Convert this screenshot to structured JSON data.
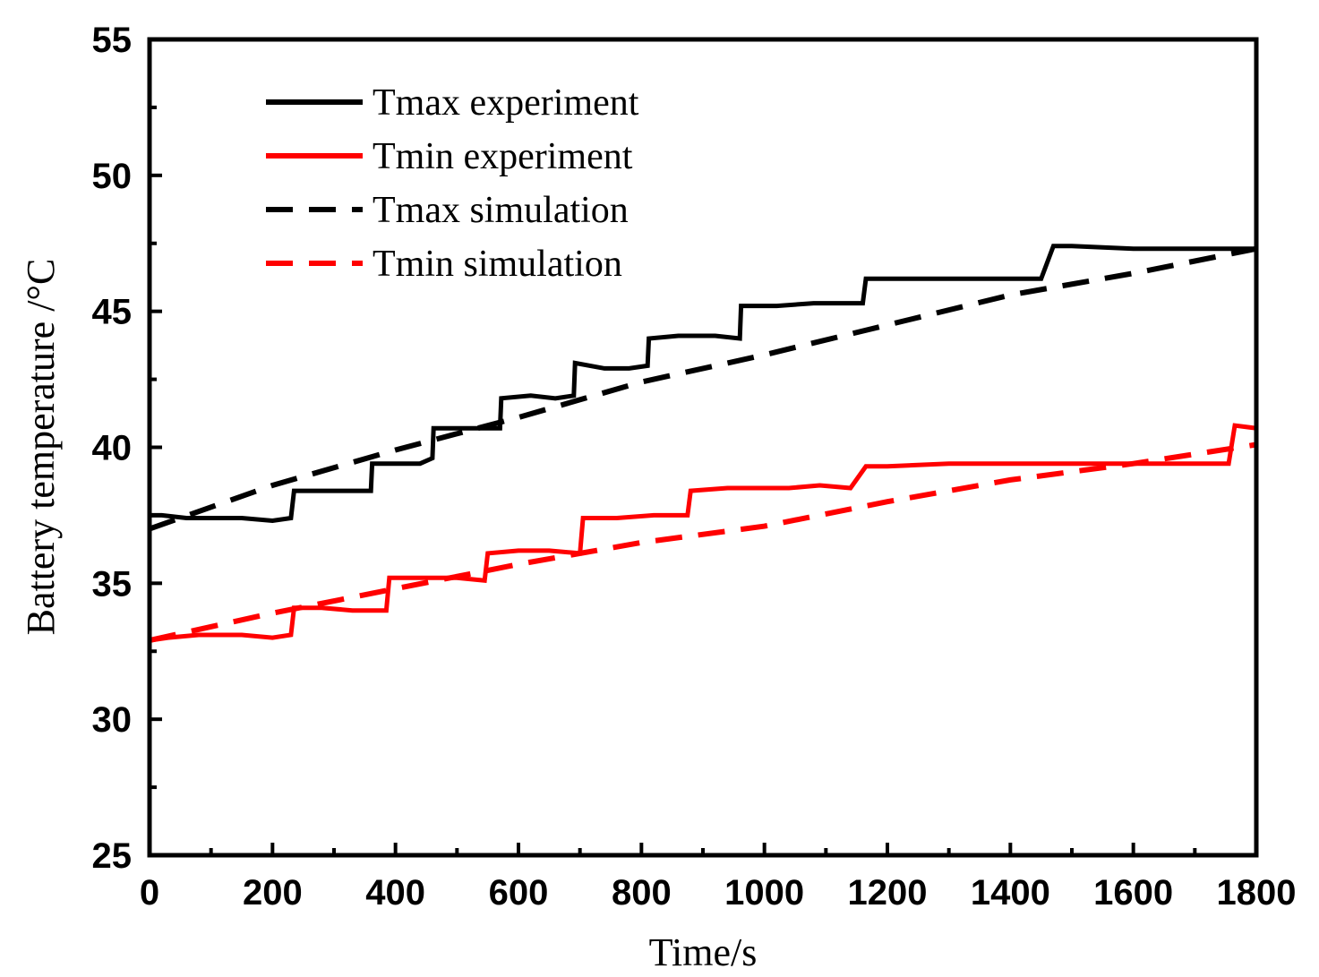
{
  "chart_data": {
    "type": "line",
    "title": "",
    "xlabel": "Time/s",
    "ylabel": "Battery temperature /°C",
    "xlim": [
      0,
      1800
    ],
    "ylim": [
      25,
      55
    ],
    "xticks": [
      0,
      200,
      400,
      600,
      800,
      1000,
      1200,
      1400,
      1600,
      1800
    ],
    "xtick_labels": [
      "0",
      "200",
      "400",
      "600",
      "800",
      "1000",
      "1200",
      "1400",
      "1600",
      "1800"
    ],
    "yticks": [
      25,
      30,
      35,
      40,
      45,
      50,
      55
    ],
    "ytick_labels": [
      "25",
      "30",
      "35",
      "40",
      "45",
      "50",
      "55"
    ],
    "grid": false,
    "legend_position": "top-left",
    "series": [
      {
        "name": "Tmax experiment",
        "color": "#000000",
        "style": "solid",
        "x": [
          0,
          20,
          60,
          150,
          200,
          230,
          235,
          280,
          320,
          360,
          362,
          400,
          440,
          460,
          462,
          500,
          540,
          570,
          572,
          620,
          660,
          690,
          692,
          740,
          780,
          810,
          812,
          860,
          920,
          960,
          962,
          1020,
          1080,
          1160,
          1165,
          1200,
          1300,
          1400,
          1450,
          1470,
          1500,
          1600,
          1700,
          1800
        ],
        "values": [
          37.5,
          37.5,
          37.4,
          37.4,
          37.3,
          37.4,
          38.4,
          38.4,
          38.4,
          38.4,
          39.4,
          39.4,
          39.4,
          39.6,
          40.7,
          40.7,
          40.7,
          40.7,
          41.8,
          41.9,
          41.8,
          41.9,
          43.1,
          42.9,
          42.9,
          43.0,
          44.0,
          44.1,
          44.1,
          44.0,
          45.2,
          45.2,
          45.3,
          45.3,
          46.2,
          46.2,
          46.2,
          46.2,
          46.2,
          47.4,
          47.4,
          47.3,
          47.3,
          47.3
        ]
      },
      {
        "name": "Tmin experiment",
        "color": "#ff0000",
        "style": "solid",
        "x": [
          0,
          30,
          80,
          150,
          200,
          230,
          235,
          280,
          330,
          385,
          390,
          440,
          500,
          545,
          550,
          600,
          650,
          700,
          705,
          760,
          820,
          875,
          880,
          940,
          1000,
          1040,
          1090,
          1140,
          1165,
          1200,
          1300,
          1400,
          1500,
          1600,
          1700,
          1755,
          1765,
          1800
        ],
        "values": [
          32.9,
          33.0,
          33.1,
          33.1,
          33.0,
          33.1,
          34.1,
          34.1,
          34.0,
          34.0,
          35.2,
          35.2,
          35.2,
          35.1,
          36.1,
          36.2,
          36.2,
          36.1,
          37.4,
          37.4,
          37.5,
          37.5,
          38.4,
          38.5,
          38.5,
          38.5,
          38.6,
          38.5,
          39.3,
          39.3,
          39.4,
          39.4,
          39.4,
          39.4,
          39.4,
          39.4,
          40.8,
          40.7
        ]
      },
      {
        "name": "Tmax simulation",
        "color": "#000000",
        "style": "dashed",
        "x": [
          0,
          200,
          400,
          600,
          800,
          1000,
          1200,
          1400,
          1600,
          1800
        ],
        "values": [
          37.0,
          38.6,
          39.9,
          41.1,
          42.4,
          43.4,
          44.5,
          45.6,
          46.4,
          47.3
        ]
      },
      {
        "name": "Tmin simulation",
        "color": "#ff0000",
        "style": "dashed",
        "x": [
          0,
          200,
          400,
          600,
          800,
          1000,
          1200,
          1400,
          1600,
          1800
        ],
        "values": [
          32.9,
          33.9,
          34.8,
          35.7,
          36.5,
          37.1,
          38.0,
          38.8,
          39.4,
          40.1
        ]
      }
    ]
  }
}
